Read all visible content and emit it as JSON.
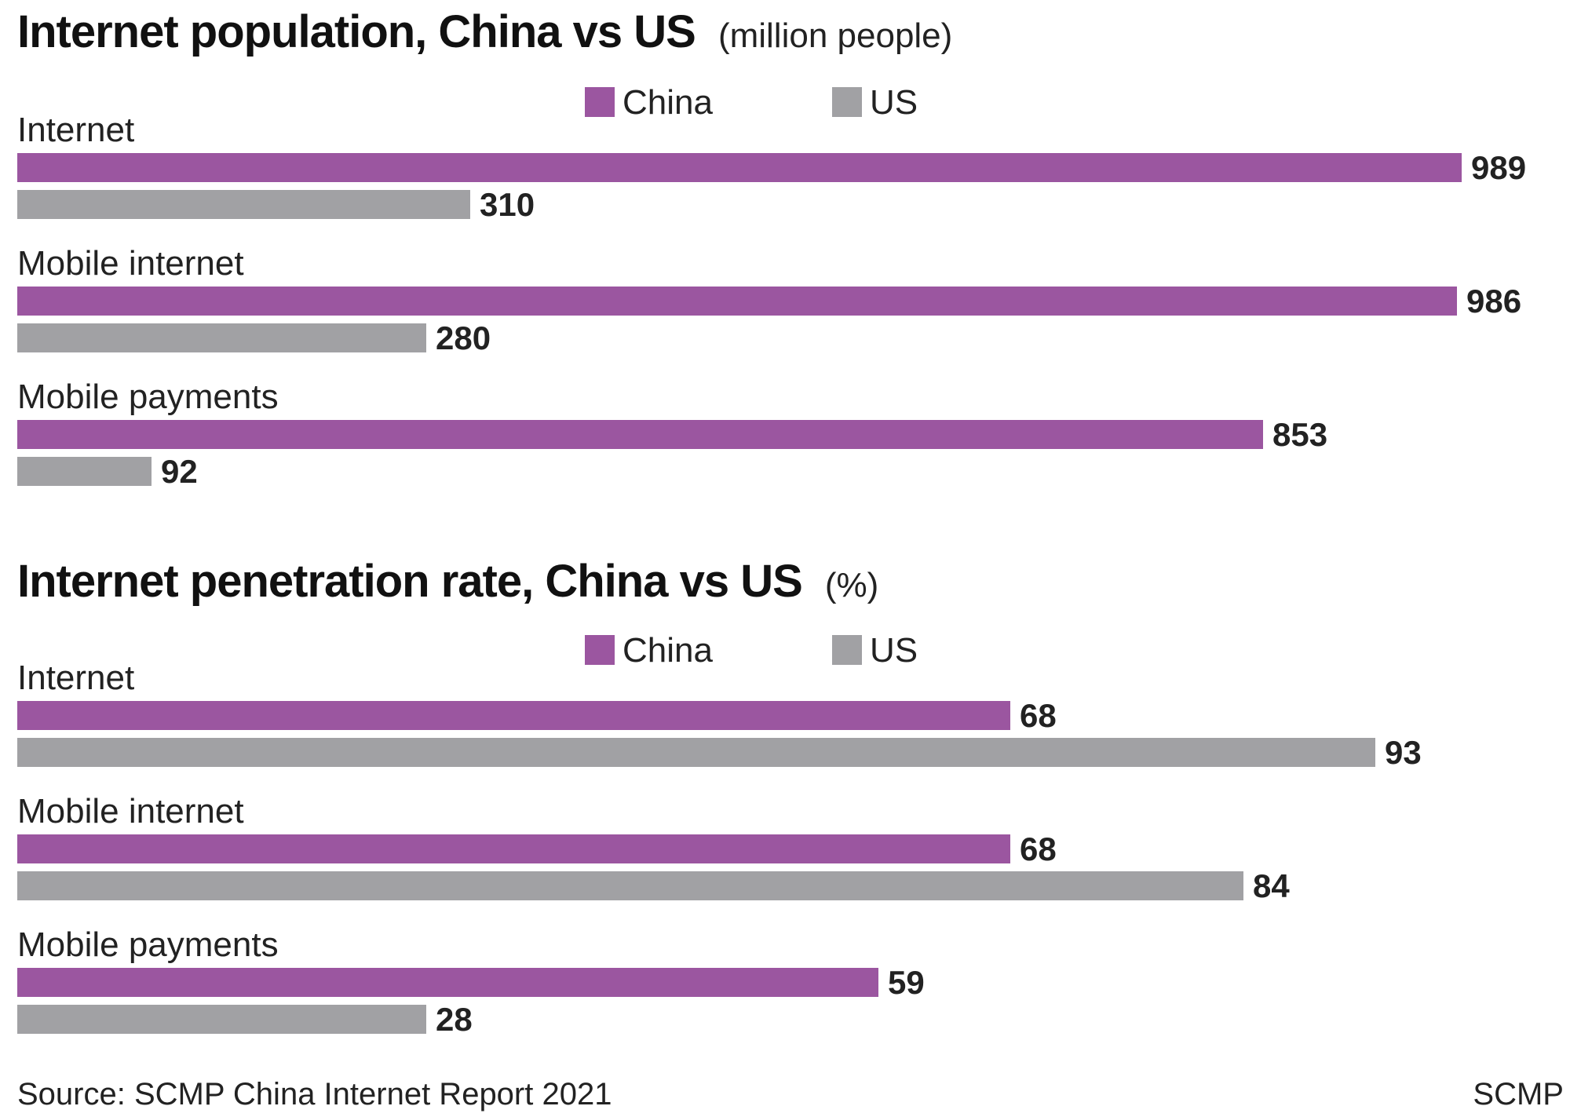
{
  "colors": {
    "china": "#9b56a0",
    "us": "#a1a1a4"
  },
  "source": "Source: SCMP China Internet Report 2021",
  "credit": "SCMP",
  "chart_data": [
    {
      "type": "bar",
      "orientation": "horizontal",
      "title": "Internet population, China vs US",
      "unit": "(million people)",
      "legend": [
        "China",
        "US"
      ],
      "legend_position": "top-center",
      "categories": [
        "Internet",
        "Mobile internet",
        "Mobile payments"
      ],
      "series": [
        {
          "name": "China",
          "values": [
            989,
            986,
            853
          ]
        },
        {
          "name": "US",
          "values": [
            310,
            280,
            92
          ]
        }
      ],
      "xlim": [
        0,
        1000
      ],
      "grid": false
    },
    {
      "type": "bar",
      "orientation": "horizontal",
      "title": "Internet penetration rate, China vs US",
      "unit": "(%)",
      "legend": [
        "China",
        "US"
      ],
      "legend_position": "top-center",
      "categories": [
        "Internet",
        "Mobile internet",
        "Mobile payments"
      ],
      "series": [
        {
          "name": "China",
          "values": [
            68,
            68,
            59
          ]
        },
        {
          "name": "US",
          "values": [
            93,
            84,
            28
          ]
        }
      ],
      "xlim": [
        0,
        100
      ],
      "grid": false
    }
  ]
}
